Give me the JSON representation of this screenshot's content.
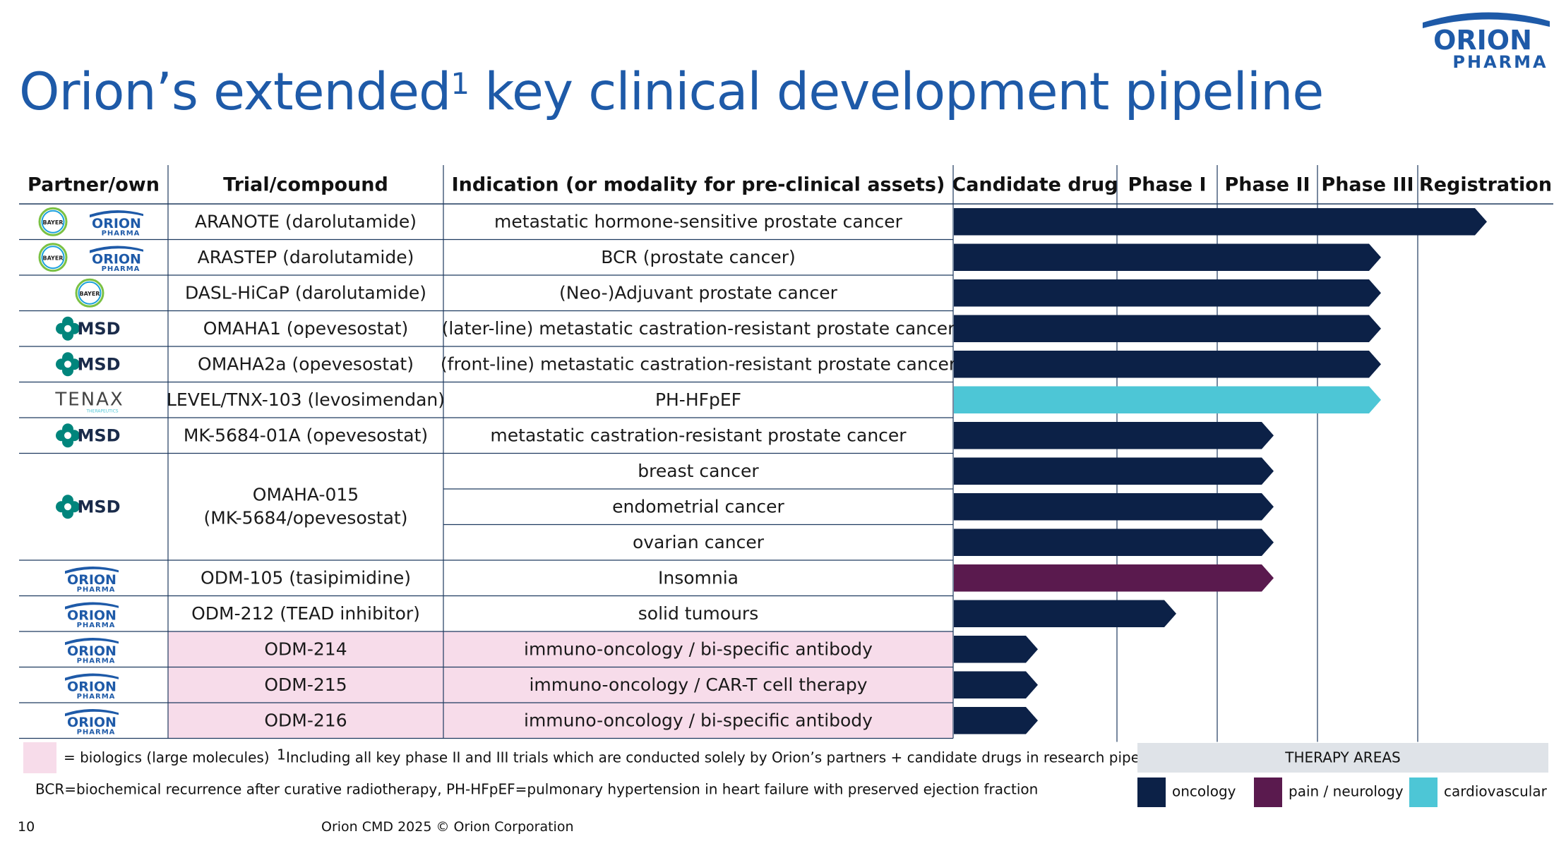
{
  "title": {
    "text": "Orion’s extended",
    "sup": "1",
    "rest": " key clinical development pipeline"
  },
  "brand": {
    "top": "ORION",
    "bottom": "PHARMA"
  },
  "colors": {
    "brand": "#1e5aa8",
    "oncology": "#0c2147",
    "pain_neurology": "#5a1a4e",
    "cardiovascular": "#4dc6d6",
    "biologics": "#f7dcea",
    "therapy_header": "#dfe3e8",
    "grid": "#1e3a5f"
  },
  "headers": {
    "partner": "Partner/own",
    "trial": "Trial/compound",
    "indication": "Indication (or modality for pre-clinical assets)",
    "phases": [
      "Candidate drug",
      "Phase I",
      "Phase II",
      "Phase III",
      "Registration"
    ]
  },
  "rows": [
    {
      "partners": [
        "Bayer",
        "Orion"
      ],
      "trial": "ARANOTE (darolutamide)",
      "indication": "metastatic hormone-sensitive prostate cancer",
      "stage": "Registration",
      "area": "oncology",
      "biologic": false
    },
    {
      "partners": [
        "Bayer",
        "Orion"
      ],
      "trial": "ARASTEP (darolutamide)",
      "indication": "BCR (prostate cancer)",
      "stage": "Phase III",
      "area": "oncology",
      "biologic": false
    },
    {
      "partners": [
        "Bayer"
      ],
      "trial": "DASL-HiCaP (darolutamide)",
      "indication": "(Neo-)Adjuvant prostate cancer",
      "stage": "Phase III",
      "area": "oncology",
      "biologic": false
    },
    {
      "partners": [
        "MSD"
      ],
      "trial": "OMAHA1 (opevesostat)",
      "indication": "(later-line) metastatic castration-resistant prostate cancer",
      "stage": "Phase III",
      "area": "oncology",
      "biologic": false
    },
    {
      "partners": [
        "MSD"
      ],
      "trial": "OMAHA2a (opevesostat)",
      "indication": "(front-line) metastatic castration-resistant prostate cancer",
      "stage": "Phase III",
      "area": "oncology",
      "biologic": false
    },
    {
      "partners": [
        "Tenax"
      ],
      "trial": "LEVEL/TNX-103 (levosimendan)",
      "indication": "PH-HFpEF",
      "stage": "Phase III",
      "area": "cardiovascular",
      "biologic": false
    },
    {
      "partners": [
        "MSD"
      ],
      "trial": "MK-5684-01A (opevesostat)",
      "indication": "metastatic castration-resistant prostate cancer",
      "stage": "Phase II",
      "area": "oncology",
      "biologic": false
    },
    {
      "partners": [
        "MSD"
      ],
      "trial": "OMAHA-015",
      "trial2": "(MK-5684/opevesostat)",
      "indications": [
        "breast cancer",
        "endometrial cancer",
        "ovarian cancer"
      ],
      "stage": "Phase II",
      "area": "oncology",
      "biologic": false
    },
    {
      "partners": [
        "Orion"
      ],
      "trial": "ODM-105 (tasipimidine)",
      "indication": "Insomnia",
      "stage": "Phase II",
      "area": "pain_neurology",
      "biologic": false
    },
    {
      "partners": [
        "Orion"
      ],
      "trial": "ODM-212 (TEAD inhibitor)",
      "indication": "solid tumours",
      "stage": "Phase I",
      "area": "oncology",
      "biologic": false
    },
    {
      "partners": [
        "Orion"
      ],
      "trial": "ODM-214",
      "indication": "immuno-oncology / bi-specific antibody",
      "stage": "Candidate drug",
      "area": "oncology",
      "biologic": true
    },
    {
      "partners": [
        "Orion"
      ],
      "trial": "ODM-215",
      "indication": "immuno-oncology / CAR-T cell therapy",
      "stage": "Candidate drug",
      "area": "oncology",
      "biologic": true
    },
    {
      "partners": [
        "Orion"
      ],
      "trial": "ODM-216",
      "indication": "immuno-oncology / bi-specific antibody",
      "stage": "Candidate drug",
      "area": "oncology",
      "biologic": true
    }
  ],
  "partner_labels": {
    "bayer": "BAYER",
    "msd": "MSD",
    "tenax": "TENAX",
    "tenax_sub": "THERAPEUTICS"
  },
  "legend": {
    "biologics": "= biologics (large molecules)",
    "footnote_mark": "1",
    "footnote": "Including all key phase II and III trials which are conducted solely by Orion’s partners + candidate drugs in research pipeline",
    "abbrev": "BCR=biochemical recurrence after curative radiotherapy, PH-HFpEF=pulmonary hypertension in heart failure with preserved ejection fraction",
    "therapy_header": "THERAPY AREAS",
    "areas": [
      {
        "key": "oncology",
        "label": "oncology"
      },
      {
        "key": "pain_neurology",
        "label": "pain / neurology"
      },
      {
        "key": "cardiovascular",
        "label": "cardiovascular"
      }
    ]
  },
  "footer": {
    "page": "10",
    "event": "Orion CMD 2025  © Orion Corporation"
  }
}
